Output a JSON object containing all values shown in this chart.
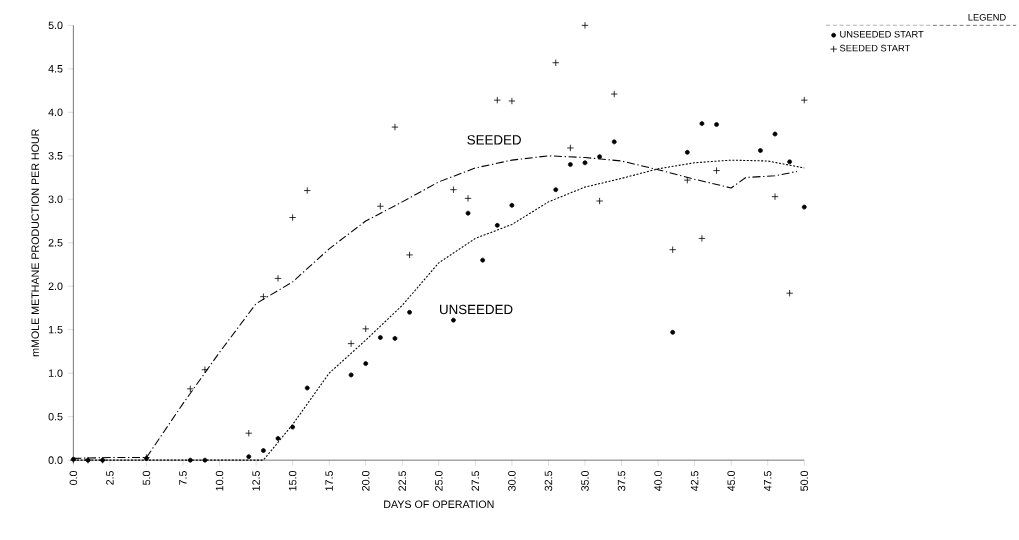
{
  "chart_data": {
    "type": "scatter",
    "xlabel": "DAYS OF OPERATION",
    "ylabel": "mMOLE METHANE PRODUCTION PER HOUR",
    "legend_title": "LEGEND",
    "legend": "top right",
    "xlim": [
      0,
      50
    ],
    "ylim": [
      0,
      5
    ],
    "xticks": [
      {
        "value": 0,
        "label": "0.0"
      },
      {
        "value": 2.5,
        "label": "2.5"
      },
      {
        "value": 5,
        "label": "5.0"
      },
      {
        "value": 7.5,
        "label": "7.5"
      },
      {
        "value": 10,
        "label": "10.0"
      },
      {
        "value": 12.5,
        "label": "12.5"
      },
      {
        "value": 15,
        "label": "15.0"
      },
      {
        "value": 17.5,
        "label": "17.5"
      },
      {
        "value": 20,
        "label": "20.0"
      },
      {
        "value": 22.5,
        "label": "22.5"
      },
      {
        "value": 25,
        "label": "25.0"
      },
      {
        "value": 27.5,
        "label": "27.5"
      },
      {
        "value": 30,
        "label": "30.0"
      },
      {
        "value": 32.5,
        "label": "32.5"
      },
      {
        "value": 35,
        "label": "35.0"
      },
      {
        "value": 37.5,
        "label": "37.5"
      },
      {
        "value": 40,
        "label": "40.0"
      },
      {
        "value": 42.5,
        "label": "42.5"
      },
      {
        "value": 45,
        "label": "45.0"
      },
      {
        "value": 47.5,
        "label": "47.5"
      },
      {
        "value": 50,
        "label": "50.0"
      }
    ],
    "yticks": [
      {
        "value": 0,
        "label": "0.0"
      },
      {
        "value": 0.5,
        "label": "0.5"
      },
      {
        "value": 1,
        "label": "1.0"
      },
      {
        "value": 1.5,
        "label": "1.5"
      },
      {
        "value": 2,
        "label": "2.0"
      },
      {
        "value": 2.5,
        "label": "2.5"
      },
      {
        "value": 3,
        "label": "3.0"
      },
      {
        "value": 3.5,
        "label": "3.5"
      },
      {
        "value": 4,
        "label": "4.0"
      },
      {
        "value": 4.5,
        "label": "4.5"
      },
      {
        "value": 5,
        "label": "5.0"
      }
    ],
    "annotations": [
      "SEEDED",
      "UNSEEDED"
    ],
    "series": [
      {
        "name": "SEEDED START",
        "marker": "cross",
        "color": "#000000",
        "x": [
          0,
          1,
          2,
          5,
          8,
          9,
          12,
          13,
          14,
          15,
          16,
          19,
          20,
          21,
          22,
          23,
          26,
          27,
          29,
          30,
          33,
          34,
          35,
          36,
          37,
          41,
          42,
          43,
          44,
          48,
          49,
          50
        ],
        "values": [
          0.0,
          0.0,
          0.0,
          0.03,
          0.82,
          1.04,
          0.31,
          1.88,
          2.09,
          2.79,
          3.1,
          1.34,
          1.51,
          2.92,
          3.83,
          2.36,
          3.11,
          3.01,
          4.14,
          4.13,
          4.57,
          3.59,
          5.0,
          2.98,
          4.21,
          2.42,
          3.22,
          2.55,
          3.33,
          3.03,
          1.92,
          4.14
        ]
      },
      {
        "name": "UNSEEDED START",
        "marker": "circle",
        "color": "#000000",
        "x": [
          0,
          1,
          2,
          5,
          8,
          9,
          12,
          13,
          14,
          15,
          16,
          19,
          20,
          21,
          22,
          23,
          26,
          27,
          28,
          29,
          30,
          33,
          34,
          35,
          36,
          37,
          41,
          42,
          43,
          44,
          47,
          48,
          49,
          50
        ],
        "values": [
          0.01,
          0.0,
          0.0,
          0.02,
          0.0,
          0.0,
          0.04,
          0.11,
          0.25,
          0.38,
          0.83,
          0.98,
          1.11,
          1.41,
          1.4,
          1.7,
          1.61,
          2.84,
          2.3,
          2.7,
          2.93,
          3.11,
          3.4,
          3.42,
          3.49,
          3.66,
          1.47,
          3.54,
          3.87,
          3.86,
          3.56,
          3.75,
          3.43,
          2.91
        ]
      },
      {
        "type": "line",
        "line_style": "dashed",
        "color": "#000000",
        "x": [
          0,
          2.5,
          5,
          7.5,
          10,
          12.5,
          15,
          17.5,
          20,
          22.5,
          25,
          27.5,
          30,
          32.5,
          35,
          37.5,
          40,
          42.5,
          45,
          46,
          48,
          49.5
        ],
        "values": [
          0.02,
          0.03,
          0.03,
          0.65,
          1.24,
          1.8,
          2.05,
          2.43,
          2.75,
          2.97,
          3.2,
          3.36,
          3.45,
          3.5,
          3.48,
          3.44,
          3.34,
          3.23,
          3.13,
          3.25,
          3.27,
          3.32
        ]
      },
      {
        "type": "line",
        "line_style": "dotted",
        "color": "#000000",
        "x": [
          0,
          5,
          10,
          13,
          15,
          17.5,
          20,
          22.5,
          25,
          27.5,
          30,
          32.5,
          35,
          37.5,
          40,
          42.5,
          45,
          47.5,
          50
        ],
        "values": [
          0.0,
          0.0,
          0.0,
          0.0,
          0.41,
          1.0,
          1.38,
          1.78,
          2.27,
          2.55,
          2.71,
          2.97,
          3.14,
          3.24,
          3.35,
          3.42,
          3.45,
          3.44,
          3.36
        ]
      }
    ]
  }
}
